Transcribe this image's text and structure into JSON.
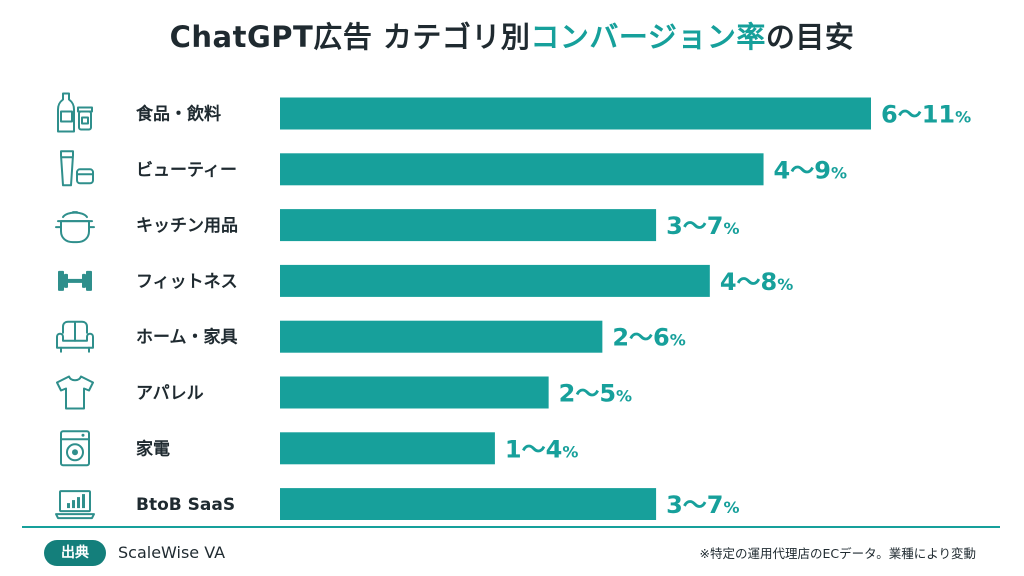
{
  "title": {
    "part1": "ChatGPT広告 カテゴリ別",
    "part2": "コンバージョン率",
    "part3": "の目安"
  },
  "colors": {
    "bar": "#17a09b",
    "accent": "#16a09b",
    "icon": "#2f8f8c",
    "badge": "#147f7b"
  },
  "chart_data": {
    "type": "bar",
    "orientation": "horizontal",
    "unit": "%",
    "categories": [
      "食品・飲料",
      "ビューティー",
      "キッチン用品",
      "フィットネス",
      "ホーム・家具",
      "アパレル",
      "家電",
      "BtoB SaaS"
    ],
    "icons": [
      "bottle-jar-icon",
      "cosmetics-icon",
      "cooking-pot-icon",
      "dumbbell-icon",
      "sofa-icon",
      "t-shirt-icon",
      "washing-machine-icon",
      "laptop-chart-icon"
    ],
    "ranges": [
      [
        6,
        11
      ],
      [
        4,
        9
      ],
      [
        3,
        7
      ],
      [
        4,
        8
      ],
      [
        2,
        6
      ],
      [
        2,
        5
      ],
      [
        1,
        4
      ],
      [
        3,
        7
      ]
    ],
    "range_labels": [
      "6～11",
      "4～9",
      "3～7",
      "4～8",
      "2～6",
      "2～5",
      "1～4",
      "3～7"
    ],
    "xlim": [
      0,
      11
    ],
    "grid": false,
    "legend": "none"
  },
  "footer": {
    "source_label": "出典",
    "source_name": "ScaleWise VA",
    "note": "※特定の運用代理店のECデータ。業種により変動"
  }
}
